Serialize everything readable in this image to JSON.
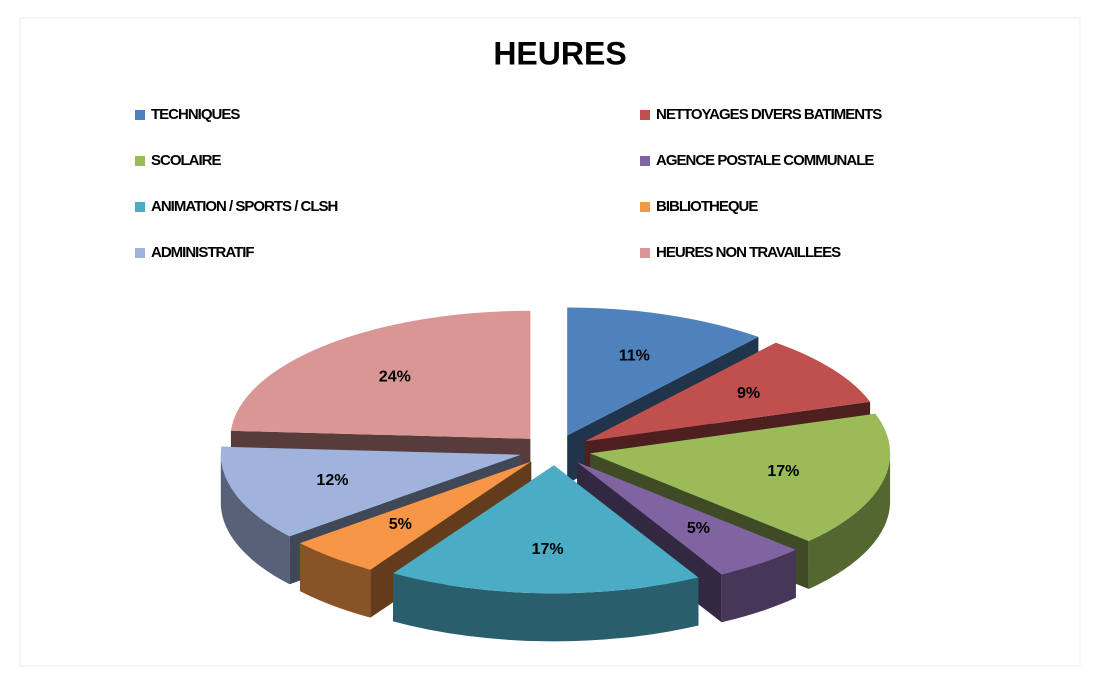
{
  "chart_data": {
    "type": "pie",
    "title": "HEURES",
    "categories": [
      "TECHNIQUES",
      "NETTOYAGES DIVERS BATIMENTS",
      "SCOLAIRE",
      "AGENCE POSTALE COMMUNALE",
      "ANIMATION / SPORTS / CLSH",
      "BIBLIOTHEQUE",
      "ADMINISTRATIF",
      "HEURES NON TRAVAILLEES"
    ],
    "values": [
      11,
      9,
      17,
      5,
      17,
      5,
      12,
      24
    ],
    "value_labels": [
      "11%",
      "9%",
      "17%",
      "5%",
      "17%",
      "5%",
      "12%",
      "24%"
    ],
    "colors": [
      "#4f81bd",
      "#c0504d",
      "#9bbb59",
      "#8064a2",
      "#4bacc6",
      "#f79646",
      "#9fb3dc",
      "#d99694"
    ],
    "legend": "top"
  }
}
